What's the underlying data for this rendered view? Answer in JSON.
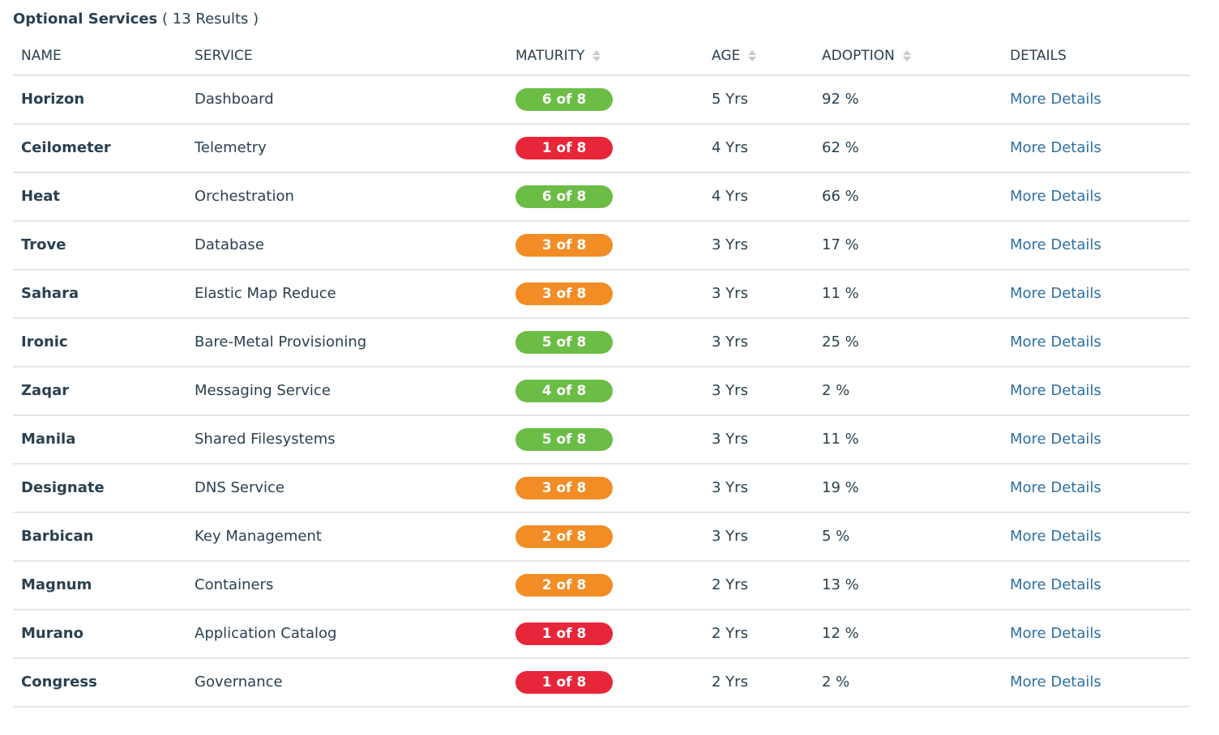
{
  "title": "Optional Services",
  "results_text": "( 13 Results )",
  "columns": {
    "name": "NAME",
    "service": "SERVICE",
    "maturity": "MATURITY",
    "age": "AGE",
    "adoption": "ADOPTION",
    "details": "DETAILS"
  },
  "colors": {
    "green": "#6bbd45",
    "red": "#e8263a",
    "orange": "#f28d25",
    "link": "#2d6fa5",
    "text": "#2a4050"
  },
  "rows": [
    {
      "name": "Horizon",
      "service": "Dashboard",
      "maturity": "6 of 8",
      "maturity_color": "green",
      "age": "5 Yrs",
      "adoption": "92 %",
      "details": "More Details"
    },
    {
      "name": "Ceilometer",
      "service": "Telemetry",
      "maturity": "1 of 8",
      "maturity_color": "red",
      "age": "4 Yrs",
      "adoption": "62 %",
      "details": "More Details"
    },
    {
      "name": "Heat",
      "service": "Orchestration",
      "maturity": "6 of 8",
      "maturity_color": "green",
      "age": "4 Yrs",
      "adoption": "66 %",
      "details": "More Details"
    },
    {
      "name": "Trove",
      "service": "Database",
      "maturity": "3 of 8",
      "maturity_color": "orange",
      "age": "3 Yrs",
      "adoption": "17 %",
      "details": "More Details"
    },
    {
      "name": "Sahara",
      "service": "Elastic Map Reduce",
      "maturity": "3 of 8",
      "maturity_color": "orange",
      "age": "3 Yrs",
      "adoption": "11 %",
      "details": "More Details"
    },
    {
      "name": "Ironic",
      "service": "Bare-Metal Provisioning",
      "maturity": "5 of 8",
      "maturity_color": "green",
      "age": "3 Yrs",
      "adoption": "25 %",
      "details": "More Details"
    },
    {
      "name": "Zaqar",
      "service": "Messaging Service",
      "maturity": "4 of 8",
      "maturity_color": "green",
      "age": "3 Yrs",
      "adoption": "2 %",
      "details": "More Details"
    },
    {
      "name": "Manila",
      "service": "Shared Filesystems",
      "maturity": "5 of 8",
      "maturity_color": "green",
      "age": "3 Yrs",
      "adoption": "11 %",
      "details": "More Details"
    },
    {
      "name": "Designate",
      "service": "DNS Service",
      "maturity": "3 of 8",
      "maturity_color": "orange",
      "age": "3 Yrs",
      "adoption": "19 %",
      "details": "More Details"
    },
    {
      "name": "Barbican",
      "service": "Key Management",
      "maturity": "2 of 8",
      "maturity_color": "orange",
      "age": "3 Yrs",
      "adoption": "5 %",
      "details": "More Details"
    },
    {
      "name": "Magnum",
      "service": "Containers",
      "maturity": "2 of 8",
      "maturity_color": "orange",
      "age": "2 Yrs",
      "adoption": "13 %",
      "details": "More Details"
    },
    {
      "name": "Murano",
      "service": "Application Catalog",
      "maturity": "1 of 8",
      "maturity_color": "red",
      "age": "2 Yrs",
      "adoption": "12 %",
      "details": "More Details"
    },
    {
      "name": "Congress",
      "service": "Governance",
      "maturity": "1 of 8",
      "maturity_color": "red",
      "age": "2 Yrs",
      "adoption": "2 %",
      "details": "More Details"
    }
  ]
}
